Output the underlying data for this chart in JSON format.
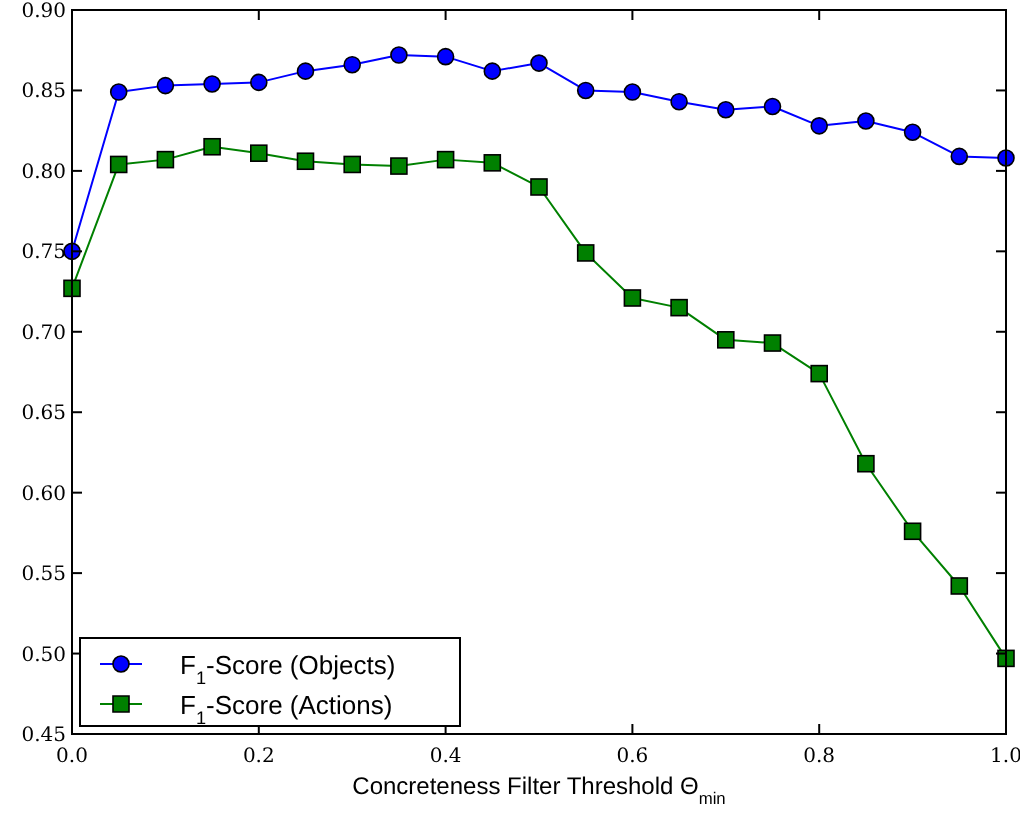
{
  "chart_data": {
    "type": "line",
    "xlabel": "Concreteness Filter Threshold Θ$_{min}$",
    "x": [
      0,
      0.05,
      0.1,
      0.15,
      0.2,
      0.25,
      0.3,
      0.35,
      0.4,
      0.45,
      0.5,
      0.55,
      0.6,
      0.65,
      0.7,
      0.75,
      0.8,
      0.85,
      0.9,
      0.95,
      1.0
    ],
    "series": [
      {
        "name": "F$_{1}$-Score (Objects)",
        "color": "#0000ff",
        "marker": "circle",
        "values": [
          0.75,
          0.849,
          0.853,
          0.854,
          0.855,
          0.862,
          0.866,
          0.872,
          0.871,
          0.862,
          0.867,
          0.85,
          0.849,
          0.843,
          0.838,
          0.84,
          0.828,
          0.831,
          0.824,
          0.809,
          0.808
        ]
      },
      {
        "name": "F$_{1}$-Score (Actions)",
        "color": "#008000",
        "marker": "square",
        "values": [
          0.727,
          0.804,
          0.807,
          0.815,
          0.811,
          0.806,
          0.804,
          0.803,
          0.807,
          0.805,
          0.79,
          0.749,
          0.721,
          0.715,
          0.695,
          0.693,
          0.674,
          0.618,
          0.576,
          0.542,
          0.497
        ]
      }
    ],
    "xlim": [
      0,
      1
    ],
    "xticks": [
      {
        "value": 0,
        "label": "0.0"
      },
      {
        "value": 0.2,
        "label": "0.2"
      },
      {
        "value": 0.4,
        "label": "0.4"
      },
      {
        "value": 0.6,
        "label": "0.6"
      },
      {
        "value": 0.8,
        "label": "0.8"
      },
      {
        "value": 1,
        "label": "1.0"
      }
    ],
    "ylim": [
      0.45,
      0.9
    ],
    "yticks": [
      0.45,
      {
        "value": 0.5,
        "label": "0.50"
      },
      0.55,
      {
        "value": 0.6,
        "label": "0.60"
      },
      0.65,
      {
        "value": 0.7,
        "label": "0.70"
      },
      0.75,
      {
        "value": 0.8,
        "label": "0.80"
      },
      0.85,
      {
        "value": 0.9,
        "label": "0.90"
      }
    ],
    "grid": false,
    "legend": "bottom left",
    "line_style": "solid"
  }
}
